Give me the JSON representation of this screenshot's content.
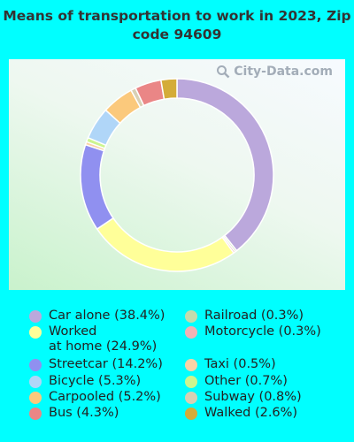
{
  "title": "Means of transportation to work in 2023, Zip code 94609",
  "watermark": "City-Data.com",
  "chart_data": {
    "type": "pie",
    "variant": "donut",
    "title": "Means of transportation to work in 2023, Zip code 94609",
    "series": [
      {
        "name": "Car alone",
        "label": "Car alone (38.4%)",
        "value": 38.4,
        "color": "#bba8dc"
      },
      {
        "name": "Railroad",
        "label": "Railroad (0.3%)",
        "value": 0.3,
        "color": "#c2dcad"
      },
      {
        "name": "Motorcycle",
        "label": "Motorcycle (0.3%)",
        "value": 0.3,
        "color": "#f1b2b4"
      },
      {
        "name": "Worked at home",
        "label": "Worked\nat home (24.9%)",
        "value": 24.9,
        "color": "#ffff99"
      },
      {
        "name": "Streetcar",
        "label": "Streetcar (14.2%)",
        "value": 14.2,
        "color": "#9090f0"
      },
      {
        "name": "Taxi",
        "label": "Taxi (0.5%)",
        "value": 0.5,
        "color": "#fbd3a6"
      },
      {
        "name": "Other",
        "label": "Other (0.7%)",
        "value": 0.7,
        "color": "#ccf58f"
      },
      {
        "name": "Bicycle",
        "label": "Bicycle (5.3%)",
        "value": 5.3,
        "color": "#b0d6f8"
      },
      {
        "name": "Carpooled",
        "label": "Carpooled (5.2%)",
        "value": 5.2,
        "color": "#fbc97c"
      },
      {
        "name": "Subway",
        "label": "Subway (0.8%)",
        "value": 0.8,
        "color": "#d8d0b4"
      },
      {
        "name": "Bus",
        "label": "Bus (4.3%)",
        "value": 4.3,
        "color": "#ea8686"
      },
      {
        "name": "Walked",
        "label": "Walked (2.6%)",
        "value": 2.6,
        "color": "#d4ac38"
      }
    ],
    "legend_placement": "bottom"
  }
}
